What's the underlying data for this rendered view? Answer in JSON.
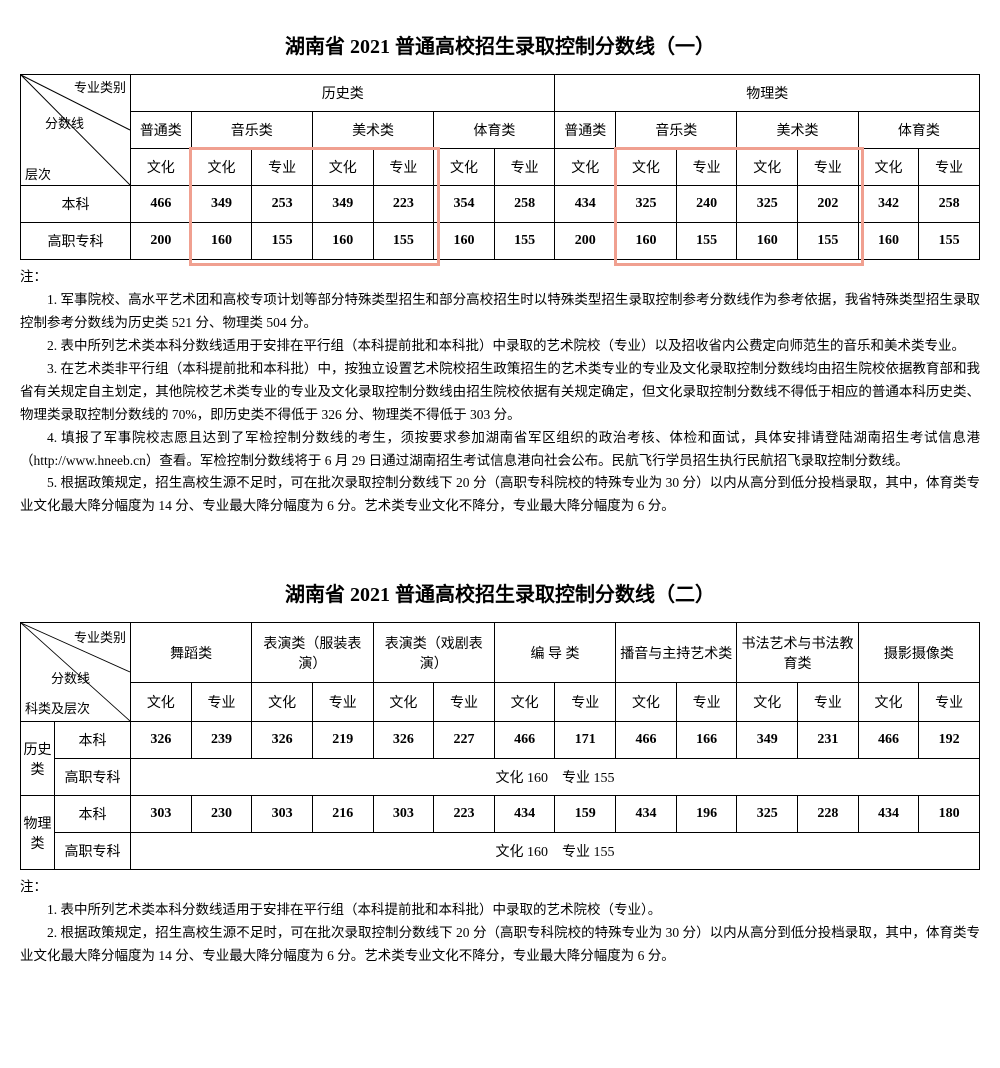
{
  "table1": {
    "title": "湖南省 2021 普通高校招生录取控制分数线（一）",
    "diag": {
      "top": "专业类别",
      "mid": "分数线",
      "bottom": "层次"
    },
    "group_history": "历史类",
    "group_physics": "物理类",
    "cat_general": "普通类",
    "cat_music": "音乐类",
    "cat_art": "美术类",
    "cat_pe": "体育类",
    "culture": "文化",
    "major": "专业",
    "row_bk": "本科",
    "row_zk": "高职专科",
    "bk": [
      "466",
      "349",
      "253",
      "349",
      "223",
      "354",
      "258",
      "434",
      "325",
      "240",
      "325",
      "202",
      "342",
      "258"
    ],
    "zk": [
      "200",
      "160",
      "155",
      "160",
      "155",
      "160",
      "155",
      "200",
      "160",
      "155",
      "160",
      "155",
      "160",
      "155"
    ],
    "highlight_color": "#f0a090"
  },
  "notes1": {
    "label": "注：",
    "p1": "1. 军事院校、高水平艺术团和高校专项计划等部分特殊类型招生和部分高校招生时以特殊类型招生录取控制参考分数线作为参考依据，我省特殊类型招生录取控制参考分数线为历史类 521 分、物理类 504 分。",
    "p2": "2. 表中所列艺术类本科分数线适用于安排在平行组（本科提前批和本科批）中录取的艺术院校（专业）以及招收省内公费定向师范生的音乐和美术类专业。",
    "p3": "3. 在艺术类非平行组（本科提前批和本科批）中，按独立设置艺术院校招生政策招生的艺术类专业的专业及文化录取控制分数线均由招生院校依据教育部和我省有关规定自主划定，其他院校艺术类专业的专业及文化录取控制分数线由招生院校依据有关规定确定，但文化录取控制分数线不得低于相应的普通本科历史类、物理类录取控制分数线的 70%，即历史类不得低于 326 分、物理类不得低于 303 分。",
    "p4": "4. 填报了军事院校志愿且达到了军检控制分数线的考生，须按要求参加湖南省军区组织的政治考核、体检和面试，具体安排请登陆湖南招生考试信息港（http://www.hneeb.cn）查看。军检控制分数线将于 6 月 29 日通过湖南招生考试信息港向社会公布。民航飞行学员招生执行民航招飞录取控制分数线。",
    "p5": "5. 根据政策规定，招生高校生源不足时，可在批次录取控制分数线下 20 分（高职专科院校的特殊专业为 30 分）以内从高分到低分投档录取，其中，体育类专业文化最大降分幅度为 14 分、专业最大降分幅度为 6 分。艺术类专业文化不降分，专业最大降分幅度为 6 分。"
  },
  "table2": {
    "title": "湖南省 2021 普通高校招生录取控制分数线（二）",
    "diag": {
      "top": "专业类别",
      "mid": "分数线",
      "bottom": "科类及层次"
    },
    "cats": [
      "舞蹈类",
      "表演类（服装表演）",
      "表演类（戏剧表演）",
      "编 导 类",
      "播音与主持艺术类",
      "书法艺术与书法教育类",
      "摄影摄像类"
    ],
    "culture": "文化",
    "major": "专业",
    "row_history": "历史类",
    "row_physics": "物理类",
    "row_bk": "本科",
    "row_zk": "高职专科",
    "history_bk": [
      "326",
      "239",
      "326",
      "219",
      "326",
      "227",
      "466",
      "171",
      "466",
      "166",
      "349",
      "231",
      "466",
      "192"
    ],
    "physics_bk": [
      "303",
      "230",
      "303",
      "216",
      "303",
      "223",
      "434",
      "159",
      "434",
      "196",
      "325",
      "228",
      "434",
      "180"
    ],
    "zk_merged": "文化 160　专业 155"
  },
  "notes2": {
    "label": "注：",
    "p1": "1. 表中所列艺术类本科分数线适用于安排在平行组（本科提前批和本科批）中录取的艺术院校（专业）。",
    "p2": "2. 根据政策规定，招生高校生源不足时，可在批次录取控制分数线下 20 分（高职专科院校的特殊专业为 30 分）以内从高分到低分投档录取，其中，体育类专业文化最大降分幅度为 14 分、专业最大降分幅度为 6 分。艺术类专业文化不降分，专业最大降分幅度为 6 分。"
  }
}
